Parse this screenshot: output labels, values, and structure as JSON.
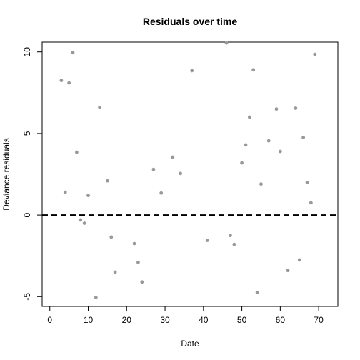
{
  "chart_data": {
    "type": "scatter",
    "title": "Residuals over time",
    "xlabel": "Date",
    "ylabel": "Deviance residuals",
    "xlim": [
      -2,
      75
    ],
    "ylim": [
      -5.6,
      10.6
    ],
    "x_ticks": [
      0,
      10,
      20,
      30,
      40,
      50,
      60,
      70
    ],
    "y_ticks": [
      -5,
      0,
      5,
      10
    ],
    "reference_line": 0,
    "grid": false,
    "legend": "none",
    "point_color": "#999999",
    "points": [
      {
        "x": 3,
        "y": 8.25
      },
      {
        "x": 4,
        "y": 1.4
      },
      {
        "x": 5,
        "y": 8.1
      },
      {
        "x": 6,
        "y": 9.95
      },
      {
        "x": 7,
        "y": 3.85
      },
      {
        "x": 8,
        "y": -0.3
      },
      {
        "x": 9,
        "y": -0.5
      },
      {
        "x": 10,
        "y": 1.2
      },
      {
        "x": 12,
        "y": -5.05
      },
      {
        "x": 13,
        "y": 6.6
      },
      {
        "x": 15,
        "y": 2.1
      },
      {
        "x": 16,
        "y": -1.35
      },
      {
        "x": 17,
        "y": -3.5
      },
      {
        "x": 22,
        "y": -1.75
      },
      {
        "x": 23,
        "y": -2.9
      },
      {
        "x": 24,
        "y": -4.1
      },
      {
        "x": 27,
        "y": 2.8
      },
      {
        "x": 29,
        "y": 1.35
      },
      {
        "x": 32,
        "y": 3.55
      },
      {
        "x": 34,
        "y": 2.55
      },
      {
        "x": 37,
        "y": 8.85
      },
      {
        "x": 41,
        "y": -1.55
      },
      {
        "x": 46,
        "y": 10.55
      },
      {
        "x": 47,
        "y": -1.25
      },
      {
        "x": 48,
        "y": -1.8
      },
      {
        "x": 50,
        "y": 3.2
      },
      {
        "x": 51,
        "y": 4.3
      },
      {
        "x": 52,
        "y": 6.0
      },
      {
        "x": 53,
        "y": 8.9
      },
      {
        "x": 54,
        "y": -4.75
      },
      {
        "x": 55,
        "y": 1.9
      },
      {
        "x": 57,
        "y": 4.55
      },
      {
        "x": 59,
        "y": 6.5
      },
      {
        "x": 60,
        "y": 3.9
      },
      {
        "x": 62,
        "y": -3.4
      },
      {
        "x": 64,
        "y": 6.55
      },
      {
        "x": 65,
        "y": -2.75
      },
      {
        "x": 66,
        "y": 4.75
      },
      {
        "x": 67,
        "y": 2.0
      },
      {
        "x": 68,
        "y": 0.75
      },
      {
        "x": 69,
        "y": 9.85
      }
    ]
  }
}
